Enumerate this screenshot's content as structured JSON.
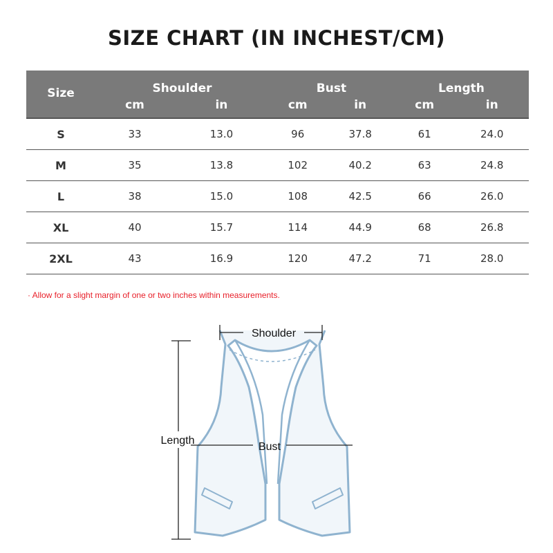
{
  "title": "SIZE CHART (IN INCHEST/CM)",
  "table": {
    "size_header": "Size",
    "groups": [
      "Shoulder",
      "Bust",
      "Length"
    ],
    "units": [
      "cm",
      "in",
      "cm",
      "in",
      "cm",
      "in"
    ],
    "rows": [
      {
        "size": "S",
        "shoulder_cm": "33",
        "shoulder_in": "13.0",
        "bust_cm": "96",
        "bust_in": "37.8",
        "length_cm": "61",
        "length_in": "24.0"
      },
      {
        "size": "M",
        "shoulder_cm": "35",
        "shoulder_in": "13.8",
        "bust_cm": "102",
        "bust_in": "40.2",
        "length_cm": "63",
        "length_in": "24.8"
      },
      {
        "size": "L",
        "shoulder_cm": "38",
        "shoulder_in": "15.0",
        "bust_cm": "108",
        "bust_in": "42.5",
        "length_cm": "66",
        "length_in": "26.0"
      },
      {
        "size": "XL",
        "shoulder_cm": "40",
        "shoulder_in": "15.7",
        "bust_cm": "114",
        "bust_in": "44.9",
        "length_cm": "68",
        "length_in": "26.8"
      },
      {
        "size": "2XL",
        "shoulder_cm": "43",
        "shoulder_in": "16.9",
        "bust_cm": "120",
        "bust_in": "47.2",
        "length_cm": "71",
        "length_in": "28.0"
      }
    ]
  },
  "note": "· Allow for a slight margin of one or two inches within measurements.",
  "diagram": {
    "shoulder_label": "Shoulder",
    "bust_label": "Bust",
    "length_label": "Length"
  },
  "colors": {
    "header_bg": "#7a7a7a",
    "note_text": "#e8202a",
    "vest_outline": "#8fb3cf"
  }
}
